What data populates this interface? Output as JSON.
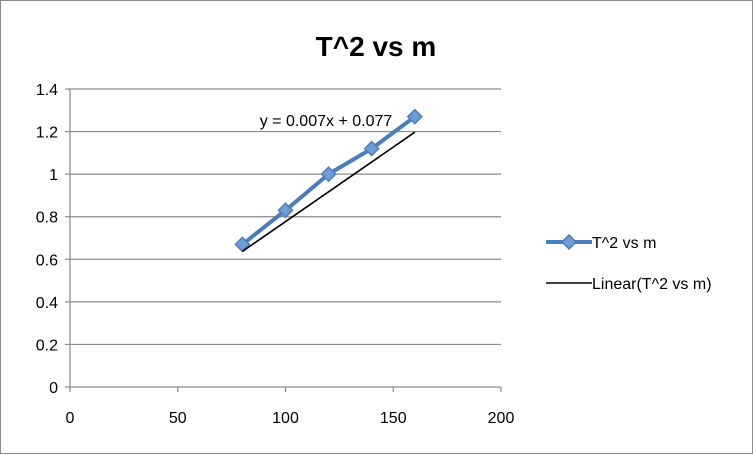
{
  "chart_data": {
    "type": "scatter",
    "title": "T^2 vs m",
    "xlabel": "",
    "ylabel": "",
    "xlim": [
      0,
      200
    ],
    "ylim": [
      0,
      1.4
    ],
    "x_ticks": [
      "0",
      "50",
      "100",
      "150",
      "200"
    ],
    "y_ticks": [
      "0",
      "0.2",
      "0.4",
      "0.6",
      "0.8",
      "1",
      "1.2",
      "1.4"
    ],
    "grid": "horizontal",
    "legend_position": "right",
    "series": [
      {
        "name": "T^2 vs m",
        "type": "line-markers",
        "marker": "diamond",
        "color": "#4a7ebb",
        "marker_fill": "#6f9bd6",
        "x": [
          80,
          100,
          120,
          140,
          160
        ],
        "y": [
          0.67,
          0.83,
          1.0,
          1.12,
          1.27
        ]
      },
      {
        "name": "Linear(T^2 vs m)",
        "type": "trendline",
        "color": "#000000",
        "slope": 0.007,
        "intercept": 0.077,
        "x_range": [
          80,
          160
        ]
      }
    ],
    "annotations": [
      {
        "text": "y = 0.007x + 0.077"
      }
    ]
  }
}
